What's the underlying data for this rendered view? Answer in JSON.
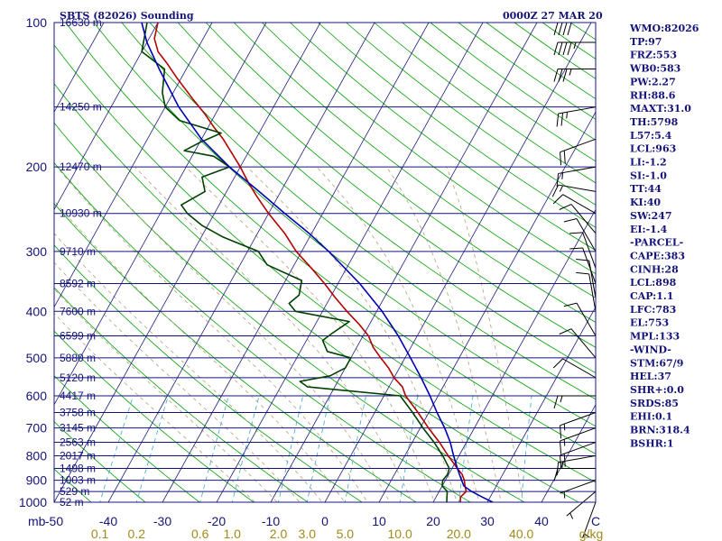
{
  "header": {
    "station": "SBTS (82026) Sounding",
    "time": "0000Z 27 MAR 20"
  },
  "indices": [
    "WMO:82026",
    "TP:97",
    "FRZ:553",
    "WB0:583",
    "PW:2.27",
    "RH:88.6",
    "MAXT:31.0",
    "TH:5798",
    "L57:5.4",
    "LCL:963",
    "LI:-1.2",
    "SI:-1.0",
    "TT:44",
    "KI:40",
    "SW:247",
    "EI:-1.4",
    "-PARCEL-",
    "CAPE:383",
    "CINH:28",
    "LCL:898",
    "CAP:1.1",
    "LFC:783",
    "EL:753",
    "MPL:133",
    "-WIND-",
    "STM:67/9",
    "HEL:37",
    "SHR+:0.0",
    "SRDS:85",
    "EHI:0.1",
    "BRN:318.4",
    "BSHR:1"
  ],
  "colors": {
    "frame": "#14147a",
    "isobar": "#14147a",
    "isotherm": "#1e1e82",
    "dry_adiabat": "#00a000",
    "moist_adiabat": "#b4a07a",
    "mixing_ratio": "#3aa6d8",
    "temperature": "#b40000",
    "dewpoint": "#004000",
    "parcel": "#0000b4",
    "wind": "#000000"
  },
  "chart_data": {
    "type": "line",
    "title": "SBTS (82026) Sounding",
    "xlabel": "C",
    "ylabel": "mb",
    "x_unit_label": "C",
    "mixing_unit_label": "g/kg",
    "y_scale": "log",
    "ylim": [
      1000,
      100
    ],
    "xlim": [
      -50,
      50
    ],
    "grid": true,
    "pressure_ticks": [
      "100",
      "200",
      "300",
      "400",
      "500",
      "600",
      "700",
      "800",
      "900",
      "1000"
    ],
    "pressure_values": [
      100,
      200,
      300,
      400,
      500,
      600,
      700,
      800,
      900,
      1000
    ],
    "temp_ticks": [
      "-50",
      "-40",
      "-30",
      "-20",
      "-10",
      "0",
      "10",
      "20",
      "30",
      "40",
      "C"
    ],
    "temp_values": [
      -50,
      -40,
      -30,
      -20,
      -10,
      0,
      10,
      20,
      30,
      40,
      50
    ],
    "mixing_ratio_ticks": [
      "0.1",
      "0.2",
      "0.6",
      "1.0",
      "2.0",
      "3.0",
      "5.0",
      "10.0",
      "20.0",
      "40.0",
      "g/kg"
    ],
    "mixing_ratio_values": [
      0.1,
      0.2,
      0.6,
      1.0,
      2.0,
      3.0,
      5.0,
      10.0,
      20.0,
      40.0
    ],
    "heights": [
      {
        "p": 100,
        "label": "16630 m"
      },
      {
        "p": 150,
        "label": "14250 m"
      },
      {
        "p": 200,
        "label": "12470 m"
      },
      {
        "p": 250,
        "label": "10930 m"
      },
      {
        "p": 300,
        "label": "9710 m"
      },
      {
        "p": 350,
        "label": "8592 m"
      },
      {
        "p": 400,
        "label": "7600 m"
      },
      {
        "p": 450,
        "label": "6599 m"
      },
      {
        "p": 500,
        "label": "5880 m"
      },
      {
        "p": 550,
        "label": "5120 m"
      },
      {
        "p": 600,
        "label": "4417 m"
      },
      {
        "p": 650,
        "label": "3758 m"
      },
      {
        "p": 700,
        "label": "3145 m"
      },
      {
        "p": 750,
        "label": "2563 m"
      },
      {
        "p": 800,
        "label": "2017 m"
      },
      {
        "p": 850,
        "label": "1498 m"
      },
      {
        "p": 900,
        "label": "1003 m"
      },
      {
        "p": 950,
        "label": "529 m"
      },
      {
        "p": 1000,
        "label": "52 m"
      }
    ],
    "series": [
      {
        "key": "temperature",
        "points": [
          [
            1000,
            25
          ],
          [
            975,
            24.5
          ],
          [
            950,
            25
          ],
          [
            925,
            24.2
          ],
          [
            900,
            23.5
          ],
          [
            875,
            22.5
          ],
          [
            850,
            21
          ],
          [
            800,
            18
          ],
          [
            750,
            15
          ],
          [
            700,
            11.5
          ],
          [
            650,
            8
          ],
          [
            600,
            4
          ],
          [
            575,
            2.5
          ],
          [
            550,
            0
          ],
          [
            525,
            -2
          ],
          [
            500,
            -4.5
          ],
          [
            475,
            -7
          ],
          [
            450,
            -9
          ],
          [
            425,
            -12
          ],
          [
            400,
            -15.5
          ],
          [
            375,
            -19
          ],
          [
            350,
            -22.5
          ],
          [
            325,
            -26.5
          ],
          [
            300,
            -31
          ],
          [
            275,
            -35
          ],
          [
            250,
            -40
          ],
          [
            230,
            -44
          ],
          [
            215,
            -47
          ],
          [
            200,
            -50
          ],
          [
            185,
            -53.5
          ],
          [
            175,
            -56
          ],
          [
            165,
            -59
          ],
          [
            155,
            -62
          ],
          [
            145,
            -65.5
          ],
          [
            130,
            -71
          ],
          [
            122,
            -74
          ],
          [
            115,
            -77
          ],
          [
            108,
            -79
          ],
          [
            100,
            -80
          ]
        ]
      },
      {
        "key": "dewpoint",
        "points": [
          [
            1000,
            22.5
          ],
          [
            975,
            22
          ],
          [
            950,
            21.5
          ],
          [
            925,
            20
          ],
          [
            900,
            19.5
          ],
          [
            875,
            19.8
          ],
          [
            850,
            19.5
          ],
          [
            800,
            17
          ],
          [
            750,
            14
          ],
          [
            700,
            10.5
          ],
          [
            650,
            7
          ],
          [
            600,
            3
          ],
          [
            575,
            -15
          ],
          [
            560,
            -17
          ],
          [
            545,
            -12
          ],
          [
            525,
            -10
          ],
          [
            500,
            -10
          ],
          [
            485,
            -15
          ],
          [
            460,
            -17
          ],
          [
            445,
            -16
          ],
          [
            420,
            -14
          ],
          [
            400,
            -25
          ],
          [
            385,
            -27
          ],
          [
            370,
            -26
          ],
          [
            345,
            -27
          ],
          [
            320,
            -35
          ],
          [
            300,
            -38
          ],
          [
            280,
            -46
          ],
          [
            265,
            -51
          ],
          [
            250,
            -55
          ],
          [
            240,
            -57
          ],
          [
            225,
            -54
          ],
          [
            210,
            -56
          ],
          [
            200,
            -52
          ],
          [
            190,
            -56
          ],
          [
            185,
            -62
          ],
          [
            178,
            -60
          ],
          [
            170,
            -57
          ],
          [
            160,
            -66
          ],
          [
            150,
            -70
          ],
          [
            140,
            -72
          ],
          [
            125,
            -74
          ],
          [
            115,
            -80
          ],
          [
            100,
            -82
          ]
        ]
      },
      {
        "key": "parcel",
        "points": [
          [
            1000,
            31
          ],
          [
            975,
            28.5
          ],
          [
            950,
            26
          ],
          [
            925,
            24
          ],
          [
            900,
            23
          ],
          [
            875,
            22
          ],
          [
            850,
            21
          ],
          [
            800,
            19
          ],
          [
            750,
            17
          ],
          [
            700,
            14.5
          ],
          [
            650,
            11.5
          ],
          [
            600,
            8.5
          ],
          [
            550,
            5
          ],
          [
            500,
            1
          ],
          [
            450,
            -3.5
          ],
          [
            400,
            -9
          ],
          [
            350,
            -16
          ],
          [
            300,
            -25
          ],
          [
            275,
            -30.5
          ],
          [
            250,
            -37
          ],
          [
            225,
            -44
          ],
          [
            200,
            -52
          ],
          [
            175,
            -60
          ],
          [
            150,
            -67.5
          ],
          [
            125,
            -75
          ],
          [
            110,
            -80
          ],
          [
            100,
            -83
          ]
        ]
      }
    ],
    "wind_barbs": [
      {
        "p": 100,
        "dir": 270,
        "kt": 40
      },
      {
        "p": 110,
        "dir": 270,
        "kt": 45
      },
      {
        "p": 125,
        "dir": 270,
        "kt": 35
      },
      {
        "p": 150,
        "dir": 260,
        "kt": 25
      },
      {
        "p": 175,
        "dir": 250,
        "kt": 20
      },
      {
        "p": 200,
        "dir": 260,
        "kt": 15
      },
      {
        "p": 225,
        "dir": 280,
        "kt": 15
      },
      {
        "p": 250,
        "dir": 300,
        "kt": 10
      },
      {
        "p": 275,
        "dir": 320,
        "kt": 10
      },
      {
        "p": 300,
        "dir": 330,
        "kt": 10
      },
      {
        "p": 325,
        "dir": 340,
        "kt": 10
      },
      {
        "p": 350,
        "dir": 340,
        "kt": 10
      },
      {
        "p": 375,
        "dir": 350,
        "kt": 10
      },
      {
        "p": 400,
        "dir": 350,
        "kt": 10
      },
      {
        "p": 450,
        "dir": 330,
        "kt": 10
      },
      {
        "p": 500,
        "dir": 320,
        "kt": 10
      },
      {
        "p": 550,
        "dir": 300,
        "kt": 10
      },
      {
        "p": 600,
        "dir": 270,
        "kt": 15
      },
      {
        "p": 650,
        "dir": 250,
        "kt": 15
      },
      {
        "p": 700,
        "dir": 250,
        "kt": 15
      },
      {
        "p": 750,
        "dir": 250,
        "kt": 20
      },
      {
        "p": 800,
        "dir": 260,
        "kt": 15
      },
      {
        "p": 850,
        "dir": 270,
        "kt": 10
      },
      {
        "p": 900,
        "dir": 250,
        "kt": 5
      },
      {
        "p": 950,
        "dir": 230,
        "kt": 5
      },
      {
        "p": 1000,
        "dir": 200,
        "kt": 5
      }
    ]
  }
}
